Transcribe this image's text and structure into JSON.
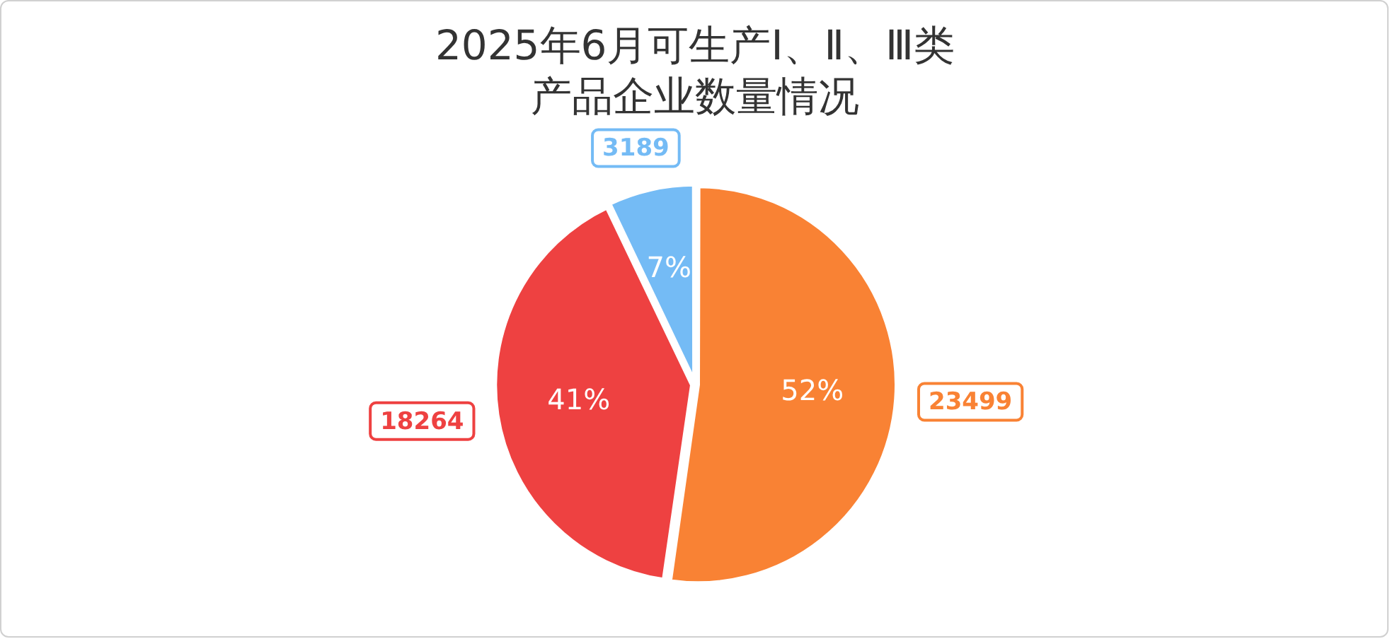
{
  "chart_data": {
    "type": "pie",
    "title": "2025年6月可生产Ⅰ、Ⅱ、Ⅲ类产品企业数量情况",
    "categories": [
      null,
      null,
      null
    ],
    "values": [
      23499,
      18264,
      3189
    ],
    "colors": [
      "#f98234",
      "#ee4141",
      "#74bbf5"
    ],
    "value_labels": [
      "23499",
      "18264",
      "3189"
    ],
    "annotations": [
      "52%",
      "41%",
      "7%"
    ],
    "legend": false
  }
}
